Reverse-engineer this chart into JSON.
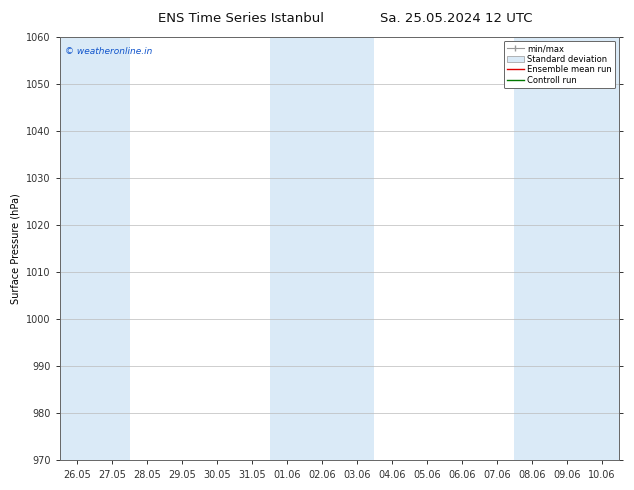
{
  "title_left": "ENS Time Series Istanbul",
  "title_right": "Sa. 25.05.2024 12 UTC",
  "ylabel": "Surface Pressure (hPa)",
  "ylim": [
    970,
    1060
  ],
  "yticks": [
    970,
    980,
    990,
    1000,
    1010,
    1020,
    1030,
    1040,
    1050,
    1060
  ],
  "x_labels": [
    "26.05",
    "27.05",
    "28.05",
    "29.05",
    "30.05",
    "31.05",
    "01.06",
    "02.06",
    "03.06",
    "04.06",
    "05.06",
    "06.06",
    "07.06",
    "08.06",
    "09.06",
    "10.06"
  ],
  "shade_indices": [
    0,
    1,
    6,
    7,
    8,
    13,
    14,
    15
  ],
  "shade_color": "#daeaf7",
  "background_color": "#ffffff",
  "plot_bg_color": "#ffffff",
  "watermark": "© weatheronline.in",
  "watermark_color": "#1155cc",
  "legend_entries": [
    "min/max",
    "Standard deviation",
    "Ensemble mean run",
    "Controll run"
  ],
  "legend_colors_line": [
    "#999999",
    "#bbccdd",
    "#dd0000",
    "#007700"
  ],
  "title_fontsize": 9.5,
  "axis_fontsize": 7,
  "ylabel_fontsize": 7,
  "grid_color": "#bbbbbb",
  "spine_color": "#666666",
  "tick_color": "#333333"
}
